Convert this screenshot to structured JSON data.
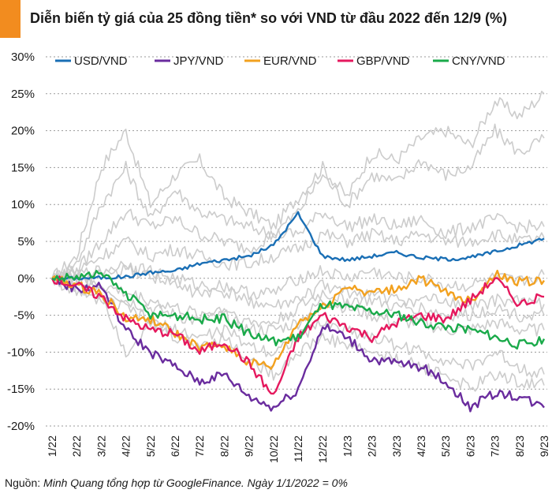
{
  "title": "Diễn biến tỷ giá của 25 đồng tiền* so với VND từ đầu 2022 đến 12/9 (%)",
  "source_lead": "Nguồn: ",
  "source_body": "Minh Quang tổng hợp từ GoogleFinance. Ngày 1/1/2022 = 0%",
  "colors": {
    "accent": "#f28c1f",
    "grid": "#9a9a9a",
    "background_series": "#cccccc"
  },
  "chart_data": {
    "type": "line",
    "x": [
      "1/22",
      "2/22",
      "3/22",
      "4/22",
      "5/22",
      "6/22",
      "7/22",
      "8/22",
      "9/22",
      "10/22",
      "11/22",
      "12/22",
      "1/23",
      "2/23",
      "3/23",
      "4/23",
      "5/23",
      "6/23",
      "7/23",
      "8/23",
      "9/23"
    ],
    "y_ticks": [
      30,
      25,
      20,
      15,
      10,
      5,
      0,
      -5,
      -10,
      -15,
      -20
    ],
    "y_tick_labels": [
      "30%",
      "25%",
      "20%",
      "15%",
      "10%",
      "5%",
      "0%",
      "-5%",
      "-10%",
      "-15%",
      "-20%"
    ],
    "ylim": [
      -20,
      30
    ],
    "grid": "horizontal dotted",
    "legend_position": "top",
    "series": [
      {
        "name": "USD/VND",
        "color": "#1a6fb5",
        "values": [
          0,
          0,
          0.1,
          0.2,
          0.8,
          1.0,
          2.0,
          2.5,
          3.0,
          4.5,
          8.8,
          3.0,
          2.5,
          3.0,
          3.5,
          2.8,
          2.6,
          2.8,
          3.6,
          4.5,
          5.4
        ]
      },
      {
        "name": "JPY/VND",
        "color": "#6a2c9e",
        "values": [
          0,
          -1.5,
          -1.0,
          -7.0,
          -10.0,
          -12.0,
          -14.0,
          -13.0,
          -16.0,
          -17.5,
          -15.0,
          -6.5,
          -8.0,
          -11.0,
          -11.5,
          -12.0,
          -14.0,
          -17.5,
          -15.5,
          -16.0,
          -17.5
        ]
      },
      {
        "name": "EUR/VND",
        "color": "#f2a11f",
        "values": [
          0,
          -1.0,
          -2.0,
          -5.5,
          -5.5,
          -7.5,
          -9.5,
          -9.0,
          -11.5,
          -12.0,
          -6.0,
          -4.0,
          -1.0,
          -2.0,
          -1.5,
          0.0,
          -2.0,
          -3.0,
          0.5,
          -0.5,
          -0.3
        ]
      },
      {
        "name": "GBP/VND",
        "color": "#e5195e",
        "values": [
          0,
          -1.0,
          -2.5,
          -5.5,
          -7.0,
          -7.5,
          -10.0,
          -8.5,
          -11.5,
          -16.0,
          -8.0,
          -5.0,
          -6.5,
          -8.0,
          -6.0,
          -5.0,
          -5.5,
          -3.0,
          0.0,
          -3.5,
          -2.5
        ]
      },
      {
        "name": "CNY/VND",
        "color": "#1aaa4a",
        "values": [
          0,
          0.2,
          0.5,
          -2.0,
          -5.0,
          -5.0,
          -5.5,
          -5.5,
          -7.5,
          -8.5,
          -8.0,
          -3.5,
          -4.0,
          -4.5,
          -5.0,
          -6.0,
          -6.5,
          -7.0,
          -8.0,
          -9.0,
          -8.2
        ]
      }
    ],
    "background_series": [
      [
        0,
        3.0,
        15.0,
        20.0,
        10.0,
        14.0,
        16.0,
        11.0,
        9.0,
        7.0,
        11.0,
        15.0,
        11.0,
        17.0,
        16.0,
        19.0,
        20.0,
        18.0,
        24.0,
        22.0,
        25.0
      ],
      [
        0,
        2.0,
        10.0,
        15.0,
        8.0,
        12.0,
        9.0,
        8.0,
        7.0,
        6.0,
        9.0,
        14.0,
        10.0,
        14.0,
        13.0,
        16.0,
        14.0,
        15.0,
        20.0,
        17.0,
        19.0
      ],
      [
        0,
        1.0,
        5.0,
        9.0,
        7.0,
        8.0,
        6.0,
        5.0,
        4.0,
        6.0,
        6.0,
        9.0,
        7.0,
        8.0,
        7.0,
        8.0,
        6.0,
        7.0,
        8.0,
        7.0,
        7.0
      ],
      [
        0,
        1.0,
        3.0,
        5.0,
        3.0,
        4.0,
        3.0,
        2.0,
        2.0,
        3.0,
        4.0,
        6.0,
        5.0,
        6.0,
        5.0,
        6.0,
        5.0,
        5.0,
        6.0,
        5.0,
        5.5
      ],
      [
        0,
        0.5,
        1.0,
        2.0,
        1.0,
        0.0,
        -1.0,
        -1.0,
        -2.0,
        -2.0,
        0.0,
        1.0,
        0.0,
        1.0,
        0.0,
        0.0,
        -1.0,
        -1.0,
        0.0,
        -0.5,
        0.5
      ],
      [
        0,
        -0.5,
        -1.0,
        -2.0,
        -3.0,
        -4.0,
        -5.0,
        -4.0,
        -6.0,
        -6.0,
        -4.0,
        -2.0,
        -3.0,
        -3.0,
        -4.0,
        -4.0,
        -5.0,
        -5.0,
        -4.0,
        -5.0,
        -5.0
      ],
      [
        0,
        -1.0,
        -3.0,
        -4.0,
        -6.0,
        -7.0,
        -8.0,
        -7.0,
        -9.0,
        -10.0,
        -8.0,
        -6.0,
        -7.0,
        -8.0,
        -9.0,
        -10.0,
        -11.0,
        -12.0,
        -10.0,
        -12.0,
        -13.0
      ],
      [
        0,
        -2.0,
        -2.0,
        -10.0,
        -6.0,
        -8.0,
        -9.0,
        -8.0,
        -11.0,
        -13.0,
        -10.0,
        -8.0,
        -9.0,
        -10.0,
        -11.0,
        -12.0,
        -13.0,
        -15.0,
        -13.0,
        -14.0,
        -14.5
      ],
      [
        0,
        0.0,
        -1.0,
        -3.0,
        -4.0,
        -5.0,
        -6.0,
        -5.0,
        -7.0,
        -7.0,
        -6.0,
        -3.0,
        -4.0,
        -5.0,
        -6.0,
        -6.0,
        -7.0,
        -7.0,
        -6.0,
        -7.0,
        -7.0
      ],
      [
        0,
        0.0,
        0.5,
        1.0,
        0.5,
        -1.0,
        -2.0,
        -2.0,
        -3.0,
        -4.0,
        -3.0,
        -1.0,
        -2.0,
        -2.0,
        -3.0,
        -3.0,
        -3.0,
        -4.0,
        -3.0,
        -3.0,
        -3.5
      ]
    ]
  }
}
